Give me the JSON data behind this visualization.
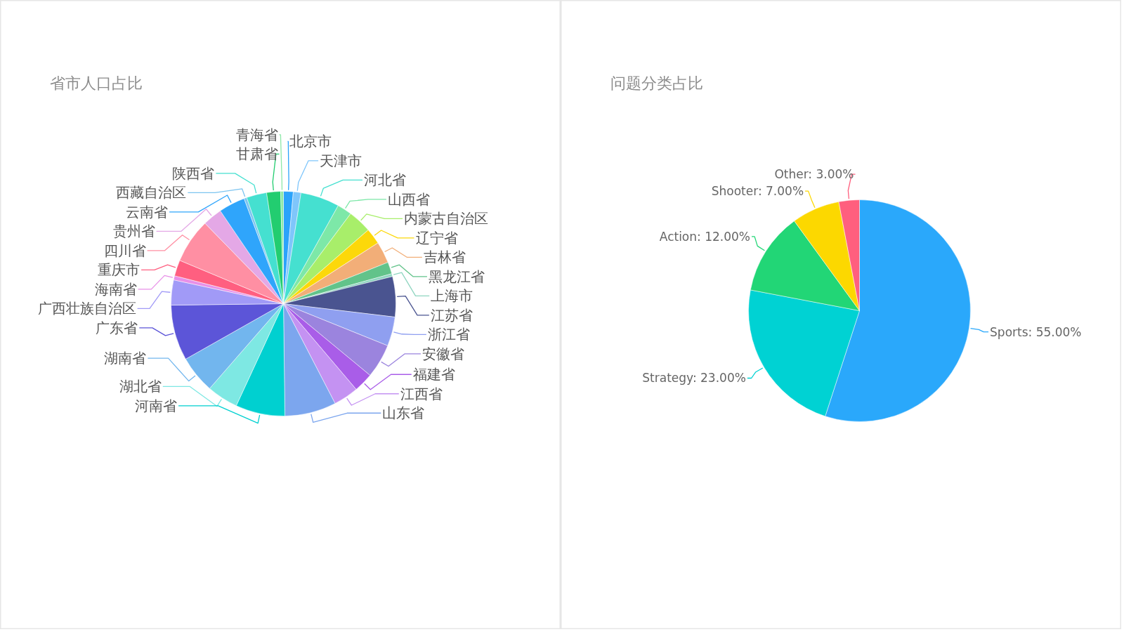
{
  "chart_data": [
    {
      "type": "pie",
      "title": "省市人口占比",
      "categories": [
        "北京市",
        "天津市",
        "河北省",
        "山西省",
        "内蒙古自治区",
        "辽宁省",
        "吉林省",
        "黑龙江省",
        "上海市",
        "江苏省",
        "浙江省",
        "安徽省",
        "福建省",
        "江西省",
        "山东省",
        "河南省",
        "湖北省",
        "湖南省",
        "广东省",
        "广西壮族自治区",
        "海南省",
        "重庆市",
        "四川省",
        "贵州省",
        "云南省",
        "西藏自治区",
        "陕西省",
        "甘肃省",
        "青海省"
      ],
      "values": [
        1.4,
        1.1,
        5.6,
        2.1,
        3.4,
        2.3,
        3.1,
        1.7,
        0.4,
        5.8,
        4.2,
        4.9,
        2.8,
        3.6,
        7.4,
        7.1,
        4.5,
        5.4,
        8.0,
        3.6,
        0.6,
        2.3,
        6.4,
        2.8,
        3.8,
        0.4,
        2.9,
        2.0,
        0.4
      ],
      "colors": [
        "#2ba3fb",
        "#7fc6fb",
        "#45e0d0",
        "#7de8a8",
        "#a8ee6a",
        "#fcd80a",
        "#f2ae78",
        "#62c38a",
        "#8fd5c0",
        "#4a5490",
        "#8f9ff0",
        "#9b84de",
        "#a95de8",
        "#c492f2",
        "#7ca6ee",
        "#00d0d0",
        "#7ee8e3",
        "#72b6ee",
        "#5c55d8",
        "#a19af7",
        "#e890e8",
        "#ff5f80",
        "#ff8fa3",
        "#e4a8e6",
        "#2fa5fb",
        "#7cc4f0",
        "#45e0d0",
        "#22cd70",
        "#8de8a8"
      ]
    },
    {
      "type": "pie",
      "title": "问题分类占比",
      "categories": [
        "Sports",
        "Strategy",
        "Action",
        "Shooter",
        "Other"
      ],
      "values": [
        55,
        23,
        12,
        7,
        3
      ],
      "value_labels": [
        "55.00%",
        "23.00%",
        "12.00%",
        "7.00%",
        "3.00%"
      ],
      "colors": [
        "#2aa8fb",
        "#00d2d3",
        "#22d676",
        "#fcd800",
        "#ff5f7e"
      ]
    }
  ]
}
